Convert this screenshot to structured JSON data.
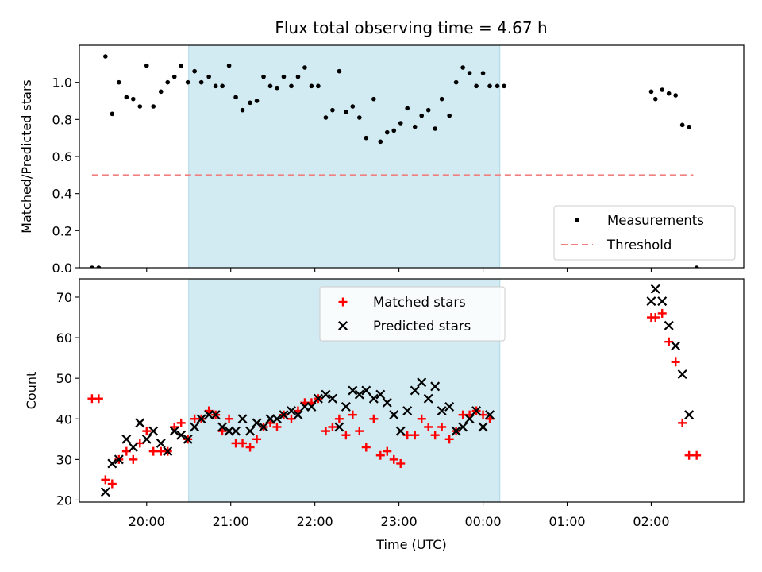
{
  "chart_data": [
    {
      "panel": "top",
      "type": "scatter",
      "title": "Flux total observing time = 4.67 h",
      "ylabel": "Matched/Predicted stars",
      "xlabel": "",
      "ylim": [
        0,
        1.2
      ],
      "yticks": [
        0.0,
        0.2,
        0.4,
        0.6,
        0.8,
        1.0
      ],
      "ytick_labels": [
        "0.0",
        "0.2",
        "0.4",
        "0.6",
        "0.8",
        "1.0"
      ],
      "x_unit": "hours since 19:00 UTC",
      "xlim": [
        0.2,
        8.1
      ],
      "highlight_span": [
        1.5,
        5.2
      ],
      "highlight_color": "#add8e6",
      "grid": false,
      "legend_position": "lower right",
      "series": [
        {
          "name": "Measurements",
          "marker": "dot",
          "color": "#000000",
          "x": [
            0.35,
            0.43,
            0.51,
            0.59,
            0.67,
            0.76,
            0.84,
            0.92,
            1.0,
            1.08,
            1.17,
            1.25,
            1.33,
            1.41,
            1.49,
            1.57,
            1.65,
            1.74,
            1.82,
            1.9,
            1.98,
            2.06,
            2.14,
            2.23,
            2.31,
            2.39,
            2.47,
            2.55,
            2.63,
            2.72,
            2.8,
            2.88,
            2.96,
            3.04,
            3.13,
            3.21,
            3.29,
            3.37,
            3.45,
            3.53,
            3.61,
            3.7,
            3.78,
            3.86,
            3.94,
            4.02,
            4.1,
            4.19,
            4.27,
            4.35,
            4.43,
            4.51,
            4.6,
            4.68,
            4.76,
            4.84,
            4.92,
            5.0,
            5.08,
            5.17,
            5.25,
            7.0,
            7.05,
            7.13,
            7.21,
            7.29,
            7.37,
            7.45,
            7.54
          ],
          "y": [
            0.0,
            0.0,
            1.14,
            0.83,
            1.0,
            0.92,
            0.91,
            0.87,
            1.09,
            0.87,
            0.95,
            1.0,
            1.03,
            1.09,
            1.0,
            1.06,
            1.0,
            1.03,
            0.98,
            0.98,
            1.09,
            0.92,
            0.85,
            0.89,
            0.9,
            1.03,
            0.98,
            0.97,
            1.03,
            0.98,
            1.03,
            1.08,
            0.98,
            0.98,
            0.81,
            0.85,
            1.06,
            0.84,
            0.87,
            0.81,
            0.7,
            0.91,
            0.68,
            0.73,
            0.74,
            0.78,
            0.86,
            0.76,
            0.82,
            0.85,
            0.75,
            0.91,
            0.82,
            1.0,
            1.08,
            1.05,
            0.98,
            1.05,
            0.98,
            0.98,
            0.98,
            0.95,
            0.91,
            0.96,
            0.94,
            0.93,
            0.77,
            0.76,
            0.0
          ]
        },
        {
          "name": "Threshold",
          "style": "dashed",
          "color": "#f08080",
          "x": [
            0.35,
            7.5
          ],
          "y": [
            0.5,
            0.5
          ]
        }
      ]
    },
    {
      "panel": "bottom",
      "type": "scatter",
      "title": "",
      "ylabel": "Count",
      "xlabel": "Time (UTC)",
      "ylim": [
        19.5,
        74.5
      ],
      "yticks": [
        20,
        30,
        40,
        50,
        60,
        70
      ],
      "ytick_labels": [
        "20",
        "30",
        "40",
        "50",
        "60",
        "70"
      ],
      "x_unit": "hours since 19:00 UTC",
      "xlim": [
        0.2,
        8.1
      ],
      "xticks": [
        1,
        2,
        3,
        4,
        5,
        6,
        7
      ],
      "xtick_labels": [
        "20:00",
        "21:00",
        "22:00",
        "23:00",
        "00:00",
        "01:00",
        "02:00"
      ],
      "highlight_span": [
        1.5,
        5.2
      ],
      "highlight_color": "#add8e6",
      "grid": false,
      "legend_position": "upper center",
      "series": [
        {
          "name": "Matched stars",
          "marker": "plus",
          "color": "#ff0000",
          "x": [
            0.35,
            0.43,
            0.51,
            0.59,
            0.67,
            0.76,
            0.84,
            0.92,
            1.0,
            1.08,
            1.17,
            1.25,
            1.33,
            1.41,
            1.49,
            1.57,
            1.65,
            1.74,
            1.82,
            1.9,
            1.98,
            2.06,
            2.14,
            2.23,
            2.31,
            2.39,
            2.47,
            2.55,
            2.63,
            2.72,
            2.8,
            2.88,
            2.96,
            3.04,
            3.13,
            3.21,
            3.29,
            3.37,
            3.45,
            3.53,
            3.61,
            3.7,
            3.78,
            3.86,
            3.94,
            4.02,
            4.1,
            4.19,
            4.27,
            4.35,
            4.43,
            4.51,
            4.6,
            4.68,
            4.76,
            4.84,
            4.92,
            5.0,
            5.08,
            7.0,
            7.05,
            7.13,
            7.21,
            7.29,
            7.37,
            7.45,
            7.54
          ],
          "y": [
            45,
            45,
            25,
            24,
            30,
            32,
            30,
            34,
            37,
            32,
            32,
            32,
            38,
            39,
            35,
            40,
            40,
            42,
            41,
            37,
            40,
            34,
            34,
            33,
            35,
            38,
            39,
            38,
            41,
            40,
            42,
            44,
            44,
            45,
            37,
            38,
            40,
            36,
            41,
            37,
            33,
            40,
            31,
            32,
            30,
            29,
            36,
            36,
            40,
            38,
            36,
            38,
            35,
            37,
            41,
            41,
            42,
            41,
            40,
            65,
            65,
            66,
            59,
            54,
            39,
            31,
            31
          ]
        },
        {
          "name": "Predicted stars",
          "marker": "x",
          "color": "#000000",
          "x": [
            0.51,
            0.59,
            0.67,
            0.76,
            0.84,
            0.92,
            1.0,
            1.08,
            1.17,
            1.25,
            1.33,
            1.41,
            1.49,
            1.57,
            1.65,
            1.74,
            1.82,
            1.9,
            1.98,
            2.06,
            2.14,
            2.23,
            2.31,
            2.39,
            2.47,
            2.55,
            2.63,
            2.72,
            2.8,
            2.88,
            2.96,
            3.04,
            3.13,
            3.21,
            3.29,
            3.37,
            3.45,
            3.53,
            3.61,
            3.7,
            3.78,
            3.86,
            3.94,
            4.02,
            4.1,
            4.19,
            4.27,
            4.35,
            4.43,
            4.51,
            4.6,
            4.68,
            4.76,
            4.84,
            4.92,
            5.0,
            5.08,
            7.0,
            7.05,
            7.13,
            7.21,
            7.29,
            7.37,
            7.45
          ],
          "y": [
            22,
            29,
            30,
            35,
            33,
            39,
            35,
            37,
            34,
            32,
            37,
            36,
            35,
            38,
            40,
            41,
            41,
            38,
            37,
            37,
            40,
            37,
            39,
            38,
            40,
            40,
            41,
            42,
            41,
            43,
            43,
            45,
            46,
            45,
            38,
            43,
            47,
            46,
            47,
            45,
            46,
            44,
            41,
            37,
            42,
            47,
            49,
            45,
            48,
            42,
            43,
            37,
            38,
            40,
            42,
            38,
            41,
            69,
            72,
            69,
            63,
            58,
            51,
            41
          ]
        }
      ]
    }
  ]
}
